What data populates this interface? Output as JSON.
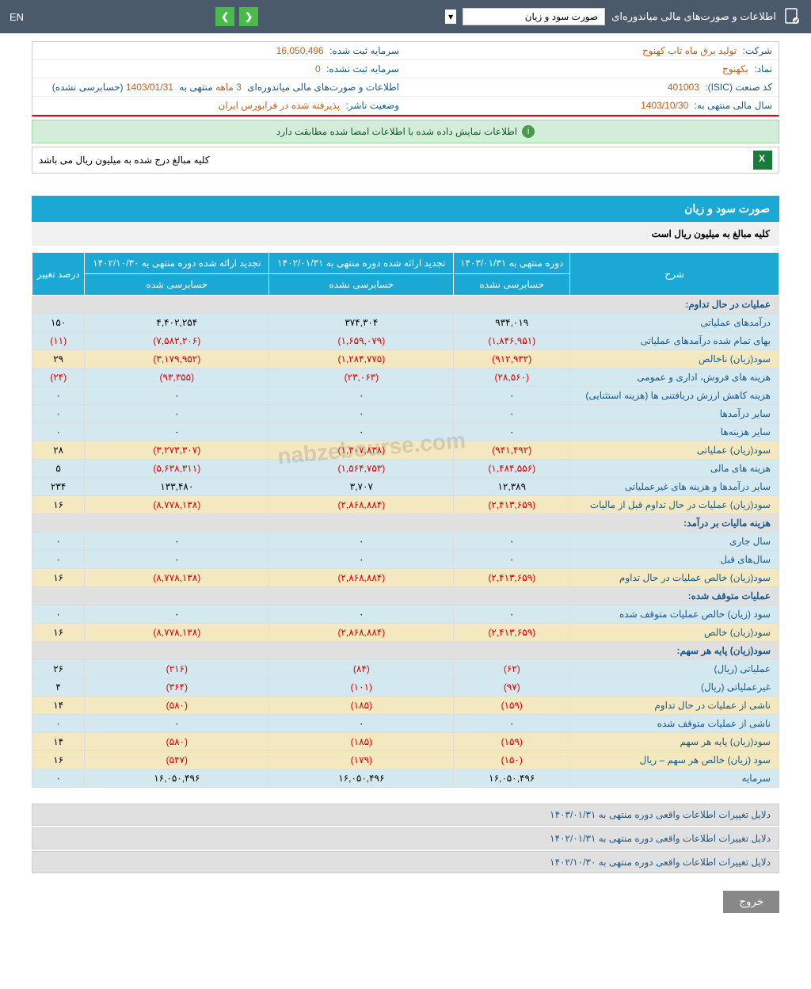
{
  "topbar": {
    "title": "اطلاعات و صورت‌های مالی میاندوره‌ای",
    "dropdown": "صورت سود و زیان",
    "lang": "EN"
  },
  "company": {
    "label_company": "شرکت:",
    "company": "تولید برق ماه تاب کهنوج",
    "label_capital_reg": "سرمایه ثبت شده:",
    "capital_reg": "16,050,496",
    "label_symbol": "نماد:",
    "symbol": "بکهنوج",
    "label_capital_unreg": "سرمایه ثبت نشده:",
    "capital_unreg": "0",
    "label_isic": "کد صنعت (ISIC):",
    "isic": "401003",
    "label_report": "اطلاعات و صورت‌های مالی میاندوره‌ای",
    "period": "3 ماهه",
    "label_ending": "منتهی به",
    "ending": "1403/01/31",
    "audit": "(حسابرسی نشده)",
    "label_fiscal": "سال مالی منتهی به:",
    "fiscal": "1403/10/30",
    "label_status": "وضعیت ناشر:",
    "status": "پذیرفته شده در فرابورس ایران"
  },
  "banner": "اطلاعات نمایش داده شده با اطلاعات امضا شده مطابقت دارد",
  "note": "کلیه مبالغ درج شده به میلیون ریال می باشد",
  "section": {
    "title": "صورت سود و زیان",
    "subtitle": "کلیه مبالغ به میلیون ریال است"
  },
  "table": {
    "headers": {
      "desc": "شرح",
      "col1": "دوره منتهی به ۱۴۰۳/۰۱/۳۱",
      "col2": "تجدید ارائه شده دوره منتهی به ۱۴۰۲/۰۱/۳۱",
      "col3": "تجدید ارائه شده دوره منتهی به ۱۴۰۲/۱۰/۳۰",
      "col4": "درصد تغییر",
      "sub1": "حسابرسی نشده",
      "sub2": "حسابرسی نشده",
      "sub3": "حسابرسی شده"
    },
    "groups": [
      {
        "type": "header",
        "label": "عملیات در حال تداوم:"
      },
      {
        "type": "row",
        "style": "blue",
        "cells": [
          "درآمدهای عملیاتی",
          "۹۳۴,۰۱۹",
          "۳۷۴,۳۰۴",
          "۴,۴۰۲,۲۵۴",
          "۱۵۰"
        ]
      },
      {
        "type": "row",
        "style": "blue",
        "cells": [
          "بهای تمام شده درآمدهای عملیاتی",
          "(۱,۸۴۶,۹۵۱)",
          "(۱,۶۵۹,۰۷۹)",
          "(۷,۵۸۲,۲۰۶)",
          "(۱۱)"
        ],
        "neg": [
          1,
          2,
          3,
          4
        ]
      },
      {
        "type": "row",
        "style": "cream",
        "cells": [
          "سود(زیان) ناخالص",
          "(۹۱۲,۹۳۲)",
          "(۱,۲۸۴,۷۷۵)",
          "(۳,۱۷۹,۹۵۲)",
          "۲۹"
        ],
        "neg": [
          1,
          2,
          3
        ]
      },
      {
        "type": "row",
        "style": "blue",
        "cells": [
          "هزینه های فروش، اداری و عمومی",
          "(۲۸,۵۶۰)",
          "(۲۳,۰۶۳)",
          "(۹۳,۳۵۵)",
          "(۲۴)"
        ],
        "neg": [
          1,
          2,
          3,
          4
        ]
      },
      {
        "type": "row",
        "style": "blue",
        "cells": [
          "هزینه کاهش ارزش دریافتنی ها (هزینه استثنایی)",
          "۰",
          "۰",
          "۰",
          "۰"
        ]
      },
      {
        "type": "row",
        "style": "blue",
        "cells": [
          "سایر درآمدها",
          "۰",
          "۰",
          "۰",
          "۰"
        ]
      },
      {
        "type": "row",
        "style": "blue",
        "cells": [
          "سایر هزینه‌ها",
          "۰",
          "۰",
          "۰",
          "۰"
        ]
      },
      {
        "type": "row",
        "style": "cream",
        "cells": [
          "سود(زیان) عملیاتی",
          "(۹۴۱,۴۹۲)",
          "(۱,۳۰۷,۸۳۸)",
          "(۳,۲۷۳,۳۰۷)",
          "۲۸"
        ],
        "neg": [
          1,
          2,
          3
        ]
      },
      {
        "type": "row",
        "style": "blue",
        "cells": [
          "هزینه های مالی",
          "(۱,۴۸۴,۵۵۶)",
          "(۱,۵۶۴,۷۵۳)",
          "(۵,۶۳۸,۳۱۱)",
          "۵"
        ],
        "neg": [
          1,
          2,
          3
        ]
      },
      {
        "type": "row",
        "style": "blue",
        "cells": [
          "سایر درآمدها و هزینه های غیرعملیاتی",
          "۱۲,۳۸۹",
          "۳,۷۰۷",
          "۱۳۳,۴۸۰",
          "۲۳۴"
        ]
      },
      {
        "type": "row",
        "style": "cream",
        "cells": [
          "سود(زیان) عملیات در حال تداوم قبل از مالیات",
          "(۲,۴۱۳,۶۵۹)",
          "(۲,۸۶۸,۸۸۴)",
          "(۸,۷۷۸,۱۳۸)",
          "۱۶"
        ],
        "neg": [
          1,
          2,
          3
        ]
      },
      {
        "type": "header",
        "label": "هزینه مالیات بر درآمد:"
      },
      {
        "type": "row",
        "style": "blue",
        "cells": [
          "سال جاری",
          "۰",
          "۰",
          "۰",
          "۰"
        ]
      },
      {
        "type": "row",
        "style": "blue",
        "cells": [
          "سال‌های قبل",
          "۰",
          "۰",
          "۰",
          "۰"
        ]
      },
      {
        "type": "row",
        "style": "cream",
        "cells": [
          "سود(زیان) خالص عملیات در حال تداوم",
          "(۲,۴۱۳,۶۵۹)",
          "(۲,۸۶۸,۸۸۴)",
          "(۸,۷۷۸,۱۳۸)",
          "۱۶"
        ],
        "neg": [
          1,
          2,
          3
        ]
      },
      {
        "type": "header",
        "label": "عملیات متوقف شده:"
      },
      {
        "type": "row",
        "style": "blue",
        "cells": [
          "سود (زیان) خالص عملیات متوقف شده",
          "۰",
          "۰",
          "۰",
          "۰"
        ]
      },
      {
        "type": "row",
        "style": "cream",
        "cells": [
          "سود(زیان) خالص",
          "(۲,۴۱۳,۶۵۹)",
          "(۲,۸۶۸,۸۸۴)",
          "(۸,۷۷۸,۱۳۸)",
          "۱۶"
        ],
        "neg": [
          1,
          2,
          3
        ]
      },
      {
        "type": "header",
        "label": "سود(زیان) پایه هر سهم:"
      },
      {
        "type": "row",
        "style": "blue",
        "cells": [
          "عملیاتی (ریال)",
          "(۶۲)",
          "(۸۴)",
          "(۲۱۶)",
          "۲۶"
        ],
        "neg": [
          1,
          2,
          3
        ]
      },
      {
        "type": "row",
        "style": "blue",
        "cells": [
          "غیرعملیاتی (ریال)",
          "(۹۷)",
          "(۱۰۱)",
          "(۳۶۴)",
          "۴"
        ],
        "neg": [
          1,
          2,
          3
        ]
      },
      {
        "type": "row",
        "style": "cream",
        "cells": [
          "ناشی از عملیات در حال تداوم",
          "(۱۵۹)",
          "(۱۸۵)",
          "(۵۸۰)",
          "۱۴"
        ],
        "neg": [
          1,
          2,
          3
        ]
      },
      {
        "type": "row",
        "style": "blue",
        "cells": [
          "ناشی از عملیات متوقف شده",
          "۰",
          "۰",
          "۰",
          "۰"
        ]
      },
      {
        "type": "row",
        "style": "cream",
        "cells": [
          "سود(زیان) پایه هر سهم",
          "(۱۵۹)",
          "(۱۸۵)",
          "(۵۸۰)",
          "۱۴"
        ],
        "neg": [
          1,
          2,
          3
        ]
      },
      {
        "type": "row",
        "style": "cream",
        "cells": [
          "سود (زیان) خالص هر سهم – ریال",
          "(۱۵۰)",
          "(۱۷۹)",
          "(۵۴۷)",
          "۱۶"
        ],
        "neg": [
          1,
          2,
          3
        ]
      },
      {
        "type": "row",
        "style": "blue",
        "cells": [
          "سرمایه",
          "۱۶,۰۵۰,۴۹۶",
          "۱۶,۰۵۰,۴۹۶",
          "۱۶,۰۵۰,۴۹۶",
          "۰"
        ]
      }
    ]
  },
  "reasons": [
    "دلایل تغییرات اطلاعات واقعی دوره منتهی به ۱۴۰۳/۰۱/۳۱",
    "دلایل تغییرات اطلاعات واقعی دوره منتهی به ۱۴۰۲/۰۱/۳۱",
    "دلایل تغییرات اطلاعات واقعی دوره منتهی به ۱۴۰۲/۱۰/۳۰"
  ],
  "exit": "خروج",
  "watermark": "nabzebourse.com"
}
